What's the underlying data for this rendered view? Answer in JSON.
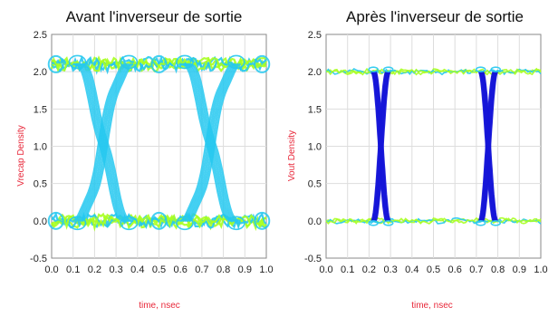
{
  "colors": {
    "background": "#ffffff",
    "frame": "#8a8a8a",
    "grid": "#dddddd",
    "axis_label": "#e8283a",
    "density_low": "#a8ff20",
    "density_mid": "#25c8f0",
    "density_high": "#1414d8"
  },
  "chart_data": [
    {
      "type": "eye-diagram-density",
      "title": "Avant l'inverseur de sortie",
      "xlabel": "time, nsec",
      "ylabel": "Vrecap Density",
      "xlim": [
        0.0,
        1.0
      ],
      "ylim": [
        -0.5,
        2.5
      ],
      "x_ticks": [
        "0.0",
        "0.1",
        "0.2",
        "0.3",
        "0.4",
        "0.5",
        "0.6",
        "0.7",
        "0.8",
        "0.9",
        "1.0"
      ],
      "y_ticks": [
        "-0.5",
        "0.0",
        "0.5",
        "1.0",
        "1.5",
        "2.0",
        "2.5"
      ],
      "grid": true,
      "levels": {
        "high": 2.1,
        "low": 0.0
      },
      "crossings": [
        {
          "center": 0.24,
          "width": 0.24,
          "voltage": 1.05
        },
        {
          "center": 0.74,
          "width": 0.24,
          "voltage": 1.05
        }
      ],
      "dominant_density": "mid"
    },
    {
      "type": "eye-diagram-density",
      "title": "Après l'inverseur de sortie",
      "xlabel": "time, nsec",
      "ylabel": "Vout Density",
      "xlim": [
        0.0,
        1.0
      ],
      "ylim": [
        -0.5,
        2.5
      ],
      "x_ticks": [
        "0.0",
        "0.1",
        "0.2",
        "0.3",
        "0.4",
        "0.5",
        "0.6",
        "0.7",
        "0.8",
        "0.9",
        "1.0"
      ],
      "y_ticks": [
        "-0.5",
        "0.0",
        "0.5",
        "1.0",
        "1.5",
        "2.0",
        "2.5"
      ],
      "grid": true,
      "levels": {
        "high": 2.0,
        "low": 0.0
      },
      "crossings": [
        {
          "center": 0.255,
          "width": 0.07,
          "voltage": 1.0
        },
        {
          "center": 0.755,
          "width": 0.07,
          "voltage": 1.0
        }
      ],
      "dominant_density": "high"
    }
  ]
}
